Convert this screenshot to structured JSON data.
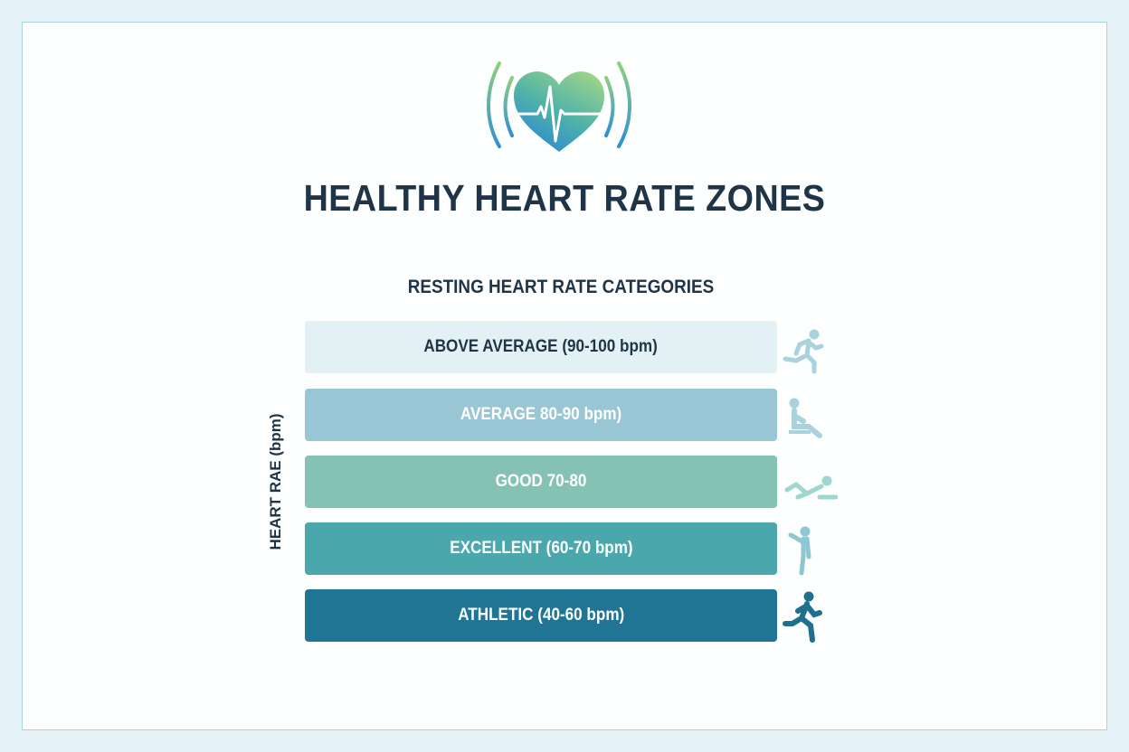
{
  "header": {
    "title": "HEALTHY HEART RATE ZONES",
    "logo_icon": "heart-pulse-icon"
  },
  "chart": {
    "subtitle": "RESTING HEART RATE CATEGORIES",
    "ylabel": "HEART RAE (bpm)",
    "zones": [
      {
        "label": "ABOVE AVERAGE (90-100 bpm)",
        "color": "#e3f0f4",
        "text_color": "#1f3447",
        "icon": "running-person-icon",
        "icon_color": "#a9d2dc"
      },
      {
        "label": "AVERAGE 80-90 bpm)",
        "color": "#98c6d5",
        "text_color": "#ffffff",
        "icon": "sitting-person-icon",
        "icon_color": "#a9d2dc"
      },
      {
        "label": "GOOD 70-80",
        "color": "#85c2b3",
        "text_color": "#ffffff",
        "icon": "reclining-person-icon",
        "icon_color": "#9fd6cf"
      },
      {
        "label": "EXCELLENT (60-70 bpm)",
        "color": "#4aa8ac",
        "text_color": "#ffffff",
        "icon": "standing-person-icon",
        "icon_color": "#8cc7d3"
      },
      {
        "label": "ATHLETIC (40-60 bpm)",
        "color": "#1f7593",
        "text_color": "#ffffff",
        "icon": "runner-icon",
        "icon_color": "#1f6f8e"
      }
    ]
  }
}
